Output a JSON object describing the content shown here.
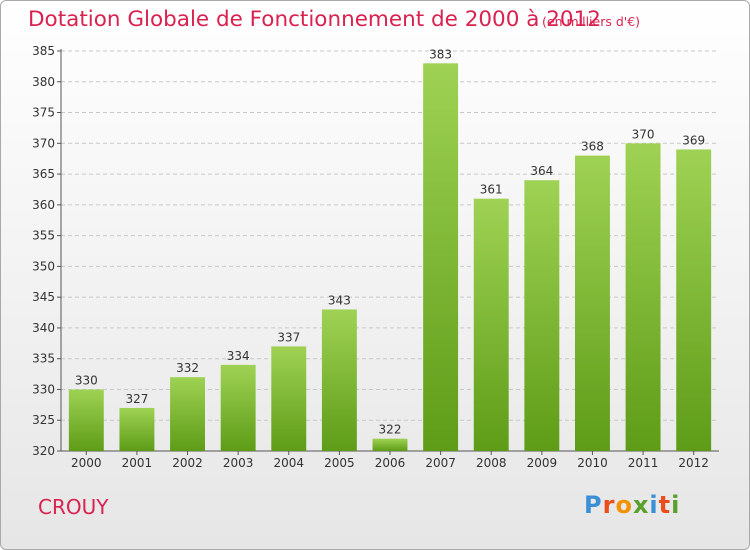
{
  "title": "Dotation Globale de Fonctionnement de 2000 à 2012",
  "subtitle": "(en milliers d'€)",
  "city": "CROUY",
  "logo": {
    "letters": [
      "P",
      "r",
      "o",
      "x",
      "i",
      "t",
      "i"
    ],
    "colors": [
      "#3a8fd6",
      "#e94e1b",
      "#f39200",
      "#5aa02c",
      "#3a8fd6",
      "#e94e1b",
      "#5aa02c"
    ]
  },
  "colors": {
    "title": "#d9224f",
    "bar_light": "#9fd254",
    "bar_dark": "#5e9c17",
    "grid": "#c8c8c8"
  },
  "chart_data": {
    "type": "bar",
    "title": "Dotation Globale de Fonctionnement de 2000 à 2012",
    "categories": [
      "2000",
      "2001",
      "2002",
      "2003",
      "2004",
      "2005",
      "2006",
      "2007",
      "2008",
      "2009",
      "2010",
      "2011",
      "2012"
    ],
    "values": [
      330,
      327,
      332,
      334,
      337,
      343,
      322,
      383,
      361,
      364,
      368,
      370,
      369
    ],
    "ylim": [
      320,
      385
    ],
    "yticks": [
      320,
      325,
      330,
      335,
      340,
      345,
      350,
      355,
      360,
      365,
      370,
      375,
      380,
      385
    ],
    "xlabel": "",
    "ylabel": "",
    "grid": true,
    "data_labels": true
  }
}
